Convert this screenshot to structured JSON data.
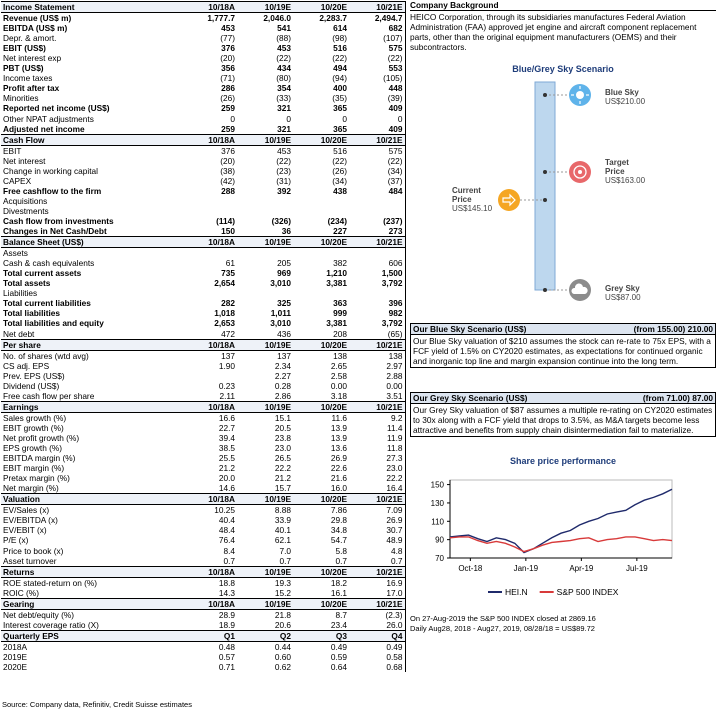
{
  "table": {
    "sections": [
      {
        "header": [
          "Income Statement",
          "10/18A",
          "10/19E",
          "10/20E",
          "10/21E"
        ],
        "rows": [
          {
            "cells": [
              "Revenue (US$ m)",
              "1,777.7",
              "2,046.0",
              "2,283.7",
              "2,494.7"
            ],
            "bold": true
          },
          {
            "cells": [
              "EBITDA (US$ m)",
              "453",
              "541",
              "614",
              "682"
            ],
            "bold": true
          },
          {
            "cells": [
              "Depr. & amort.",
              "(77)",
              "(88)",
              "(98)",
              "(107)"
            ]
          },
          {
            "cells": [
              "EBIT (US$)",
              "376",
              "453",
              "516",
              "575"
            ],
            "bold": true
          },
          {
            "cells": [
              "Net interest exp",
              "(20)",
              "(22)",
              "(22)",
              "(22)"
            ]
          },
          {
            "cells": [
              "PBT (US$)",
              "356",
              "434",
              "494",
              "553"
            ],
            "bold": true
          },
          {
            "cells": [
              "Income taxes",
              "(71)",
              "(80)",
              "(94)",
              "(105)"
            ]
          },
          {
            "cells": [
              "Profit after tax",
              "286",
              "354",
              "400",
              "448"
            ],
            "bold": true
          },
          {
            "cells": [
              "Minorities",
              "(26)",
              "(33)",
              "(35)",
              "(39)"
            ]
          },
          {
            "cells": [
              "Reported net income (US$)",
              "259",
              "321",
              "365",
              "409"
            ],
            "bold": true
          },
          {
            "cells": [
              "Other NPAT adjustments",
              "0",
              "0",
              "0",
              "0"
            ]
          },
          {
            "cells": [
              "Adjusted net income",
              "259",
              "321",
              "365",
              "409"
            ],
            "bold": true
          }
        ]
      },
      {
        "header": [
          "Cash Flow",
          "10/18A",
          "10/19E",
          "10/20E",
          "10/21E"
        ],
        "rows": [
          {
            "cells": [
              "EBIT",
              "376",
              "453",
              "516",
              "575"
            ]
          },
          {
            "cells": [
              "Net interest",
              "(20)",
              "(22)",
              "(22)",
              "(22)"
            ]
          },
          {
            "cells": [
              "Change in working capital",
              "(38)",
              "(23)",
              "(26)",
              "(34)"
            ]
          },
          {
            "cells": [
              "CAPEX",
              "(42)",
              "(31)",
              "(34)",
              "(37)"
            ]
          },
          {
            "cells": [
              "Free cashflow to the firm",
              "288",
              "392",
              "438",
              "484"
            ],
            "bold": true
          },
          {
            "cells": [
              "Acquisitions"
            ]
          },
          {
            "cells": [
              "Divestments"
            ]
          },
          {
            "cells": [
              "Cash flow from investments",
              "(114)",
              "(326)",
              "(234)",
              "(237)"
            ],
            "bold": true
          },
          {
            "cells": [
              "Changes in Net Cash/Debt",
              "150",
              "36",
              "227",
              "273"
            ],
            "bold": true
          }
        ]
      },
      {
        "header": [
          "Balance Sheet (US$)",
          "10/18A",
          "10/19E",
          "10/20E",
          "10/21E"
        ],
        "rows": [
          {
            "cells": [
              "Assets"
            ]
          },
          {
            "cells": [
              "Cash & cash equivalents",
              "61",
              "205",
              "382",
              "606"
            ]
          },
          {
            "cells": [
              "Total current assets",
              "735",
              "969",
              "1,210",
              "1,500"
            ],
            "bold": true
          },
          {
            "cells": [
              "Total assets",
              "2,654",
              "3,010",
              "3,381",
              "3,792"
            ],
            "bold": true
          },
          {
            "cells": [
              "Liabilities"
            ]
          },
          {
            "cells": [
              "Total current liabilities",
              "282",
              "325",
              "363",
              "396"
            ],
            "bold": true
          },
          {
            "cells": [
              "Total liabilities",
              "1,018",
              "1,011",
              "999",
              "982"
            ],
            "bold": true
          },
          {
            "cells": [
              "Total liabilities and equity",
              "2,653",
              "3,010",
              "3,381",
              "3,792"
            ],
            "bold": true
          },
          {
            "cells": [
              "Net debt",
              "472",
              "436",
              "208",
              "(65)"
            ]
          }
        ]
      },
      {
        "header": [
          "Per share",
          "10/18A",
          "10/19E",
          "10/20E",
          "10/21E"
        ],
        "rows": [
          {
            "cells": [
              "No. of shares (wtd avg)",
              "137",
              "137",
              "138",
              "138"
            ]
          },
          {
            "cells": [
              "CS adj. EPS",
              "1.90",
              "2.34",
              "2.65",
              "2.97"
            ]
          },
          {
            "cells": [
              "Prev. EPS (US$)",
              null,
              "2.27",
              "2.58",
              "2.88"
            ]
          },
          {
            "cells": [
              "Dividend (US$)",
              "0.23",
              "0.28",
              "0.00",
              "0.00"
            ]
          },
          {
            "cells": [
              "Free cash flow per share",
              "2.11",
              "2.86",
              "3.18",
              "3.51"
            ]
          }
        ]
      },
      {
        "header": [
          "Earnings",
          "10/18A",
          "10/19E",
          "10/20E",
          "10/21E"
        ],
        "rows": [
          {
            "cells": [
              "Sales growth (%)",
              "16.6",
              "15.1",
              "11.6",
              "9.2"
            ]
          },
          {
            "cells": [
              "EBIT growth (%)",
              "22.7",
              "20.5",
              "13.9",
              "11.4"
            ]
          },
          {
            "cells": [
              "Net profit growth (%)",
              "39.4",
              "23.8",
              "13.9",
              "11.9"
            ]
          },
          {
            "cells": [
              "EPS growth (%)",
              "38.5",
              "23.0",
              "13.6",
              "11.8"
            ]
          },
          {
            "cells": [
              "EBITDA margin (%)",
              "25.5",
              "26.5",
              "26.9",
              "27.3"
            ]
          },
          {
            "cells": [
              "EBIT margin (%)",
              "21.2",
              "22.2",
              "22.6",
              "23.0"
            ]
          },
          {
            "cells": [
              "Pretax margin (%)",
              "20.0",
              "21.2",
              "21.6",
              "22.2"
            ]
          },
          {
            "cells": [
              "Net margin (%)",
              "14.6",
              "15.7",
              "16.0",
              "16.4"
            ]
          }
        ]
      },
      {
        "header": [
          "Valuation",
          "10/18A",
          "10/19E",
          "10/20E",
          "10/21E"
        ],
        "rows": [
          {
            "cells": [
              "EV/Sales (x)",
              "10.25",
              "8.88",
              "7.86",
              "7.09"
            ]
          },
          {
            "cells": [
              "EV/EBITDA (x)",
              "40.4",
              "33.9",
              "29.8",
              "26.9"
            ]
          },
          {
            "cells": [
              "EV/EBIT (x)",
              "48.4",
              "40.1",
              "34.8",
              "30.7"
            ]
          },
          {
            "cells": [
              "P/E (x)",
              "76.4",
              "62.1",
              "54.7",
              "48.9"
            ]
          },
          {
            "cells": [
              "Price to book (x)",
              "8.4",
              "7.0",
              "5.8",
              "4.8"
            ]
          },
          {
            "cells": [
              "Asset turnover",
              "0.7",
              "0.7",
              "0.7",
              "0.7"
            ]
          }
        ]
      },
      {
        "header": [
          "Returns",
          "10/18A",
          "10/19E",
          "10/20E",
          "10/21E"
        ],
        "rows": [
          {
            "cells": [
              "ROE stated-return on (%)",
              "18.8",
              "19.3",
              "18.2",
              "16.9"
            ]
          },
          {
            "cells": [
              "ROIC (%)",
              "14.3",
              "15.2",
              "16.1",
              "17.0"
            ]
          }
        ]
      },
      {
        "header": [
          "Gearing",
          "10/18A",
          "10/19E",
          "10/20E",
          "10/21E"
        ],
        "rows": [
          {
            "cells": [
              "Net debt/equity (%)",
              "28.9",
              "21.8",
              "8.7",
              "(2.3)"
            ]
          },
          {
            "cells": [
              "Interest coverage ratio (X)",
              "18.9",
              "20.6",
              "23.4",
              "26.0"
            ]
          }
        ]
      },
      {
        "header": [
          "Quarterly EPS",
          "Q1",
          "Q2",
          "Q3",
          "Q4"
        ],
        "rows": [
          {
            "cells": [
              "2018A",
              "0.48",
              "0.44",
              "0.49",
              "0.49"
            ]
          },
          {
            "cells": [
              "2019E",
              "0.57",
              "0.60",
              "0.59",
              "0.58"
            ]
          },
          {
            "cells": [
              "2020E",
              "0.71",
              "0.62",
              "0.64",
              "0.68"
            ]
          }
        ]
      }
    ]
  },
  "source": "Source: Company data, Refinitiv, Credit Suisse estimates",
  "background": {
    "title": "Company Background",
    "text": "HEICO Corporation, through its subsidiaries manufactures Federal Aviation Administration (FAA) approved jet engine and aircraft component replacement parts, other than the original equipment manufacturers (OEMS) and their subcontractors."
  },
  "scenario": {
    "title": "Blue/Grey Sky Scenario",
    "blue": {
      "label": "Blue Sky",
      "price": "US$210.00"
    },
    "target": {
      "label": "Target Price",
      "price": "US$163.00"
    },
    "current": {
      "label": "Current Price",
      "price": "US$145.10"
    },
    "grey": {
      "label": "Grey Sky",
      "price": "US$87.00"
    }
  },
  "blue_box": {
    "title": "Our Blue Sky Scenario (US$)",
    "value": "(from 155.00) 210.00",
    "text": "Our Blue Sky valuation of $210 assumes the stock can re-rate to 75x EPS, with a FCF yield of 1.5% on CY2020 estimates, as expectations for continued organic and inorganic top line and margin expansion continue into the long term."
  },
  "grey_box": {
    "title": "Our Grey Sky Scenario (US$)",
    "value": "(from 71.00) 87.00",
    "text": "Our Grey Sky valuation of $87 assumes a multiple re-rating on CY2020 estimates to 30x along with a FCF yield that drops to 3.5%, as M&A targets become less attractive and benefits from supply chain disintermediation fail to materialize."
  },
  "chart_data": {
    "type": "line",
    "title": "Share price performance",
    "x": [
      0,
      0.5,
      1,
      1.5,
      2,
      2.5,
      3,
      3.5,
      4,
      4.5,
      5,
      5.5,
      6,
      6.5,
      7,
      7.5,
      8,
      8.5,
      9,
      9.5,
      10,
      10.5,
      11,
      11.5,
      12
    ],
    "xlim": [
      0,
      12
    ],
    "xticks": [
      {
        "value": 1.1,
        "label": "Oct-18"
      },
      {
        "value": 4.1,
        "label": "Jan-19"
      },
      {
        "value": 7.1,
        "label": "Apr-19"
      },
      {
        "value": 10.1,
        "label": "Jul-19"
      }
    ],
    "ylim": [
      70,
      155
    ],
    "yticks": [
      70,
      90,
      110,
      130,
      150
    ],
    "grid": false,
    "series": [
      {
        "name": "HEI.N",
        "color": "#1f2a6b",
        "values": [
          93,
          94,
          95,
          91,
          88,
          92,
          90,
          86,
          76,
          80,
          86,
          92,
          97,
          100,
          106,
          110,
          113,
          118,
          120,
          122,
          128,
          133,
          136,
          140,
          145
        ]
      },
      {
        "name": "S&P 500 INDEX",
        "color": "#d83a3a",
        "values": [
          92,
          93,
          93,
          89,
          86,
          88,
          86,
          82,
          77,
          80,
          84,
          87,
          88,
          89,
          91,
          92,
          88,
          90,
          91,
          93,
          93,
          91,
          89,
          90,
          89
        ]
      }
    ]
  },
  "notes": [
    "On 27-Aug-2019 the S&P 500 INDEX closed at 2869.16",
    "Daily Aug28, 2018 - Aug27, 2019, 08/28/18 = US$89.72"
  ]
}
